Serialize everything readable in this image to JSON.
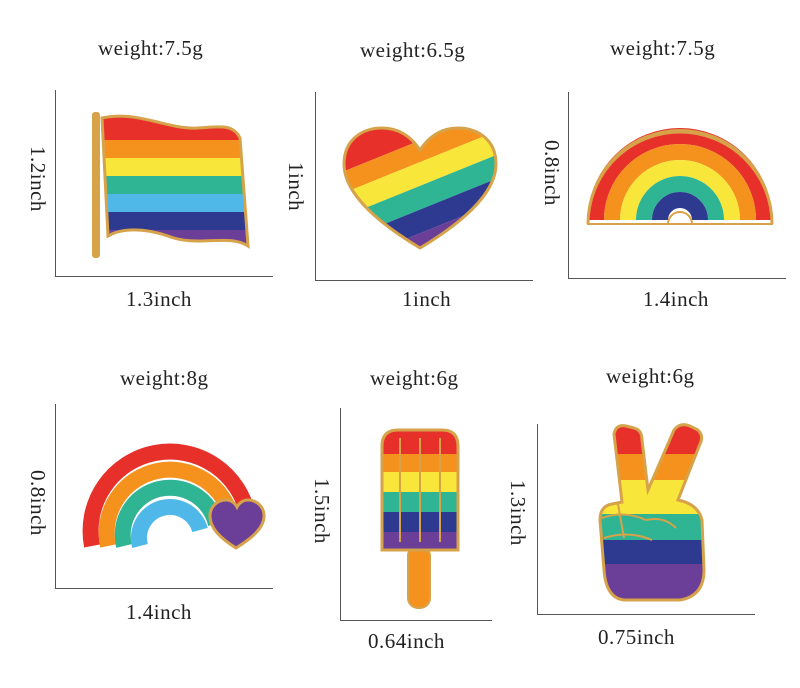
{
  "pins": [
    {
      "name": "rainbow-flag-pin",
      "weight": "weight:7.5g",
      "height_label": "1.2inch",
      "width_label": "1.3inch"
    },
    {
      "name": "rainbow-heart-pin",
      "weight": "weight:6.5g",
      "height_label": "1inch",
      "width_label": "1inch"
    },
    {
      "name": "rainbow-arch-pin",
      "weight": "weight:7.5g",
      "height_label": "0.8inch",
      "width_label": "1.4inch"
    },
    {
      "name": "rainbow-heart-arch-pin",
      "weight": "weight:8g",
      "height_label": "0.8inch",
      "width_label": "1.4inch"
    },
    {
      "name": "rainbow-popsicle-pin",
      "weight": "weight:6g",
      "height_label": "1.5inch",
      "width_label": "0.64inch"
    },
    {
      "name": "rainbow-peace-hand-pin",
      "weight": "weight:6g",
      "height_label": "1.3inch",
      "width_label": "0.75inch"
    }
  ],
  "colors": {
    "red": "#e8302a",
    "orange": "#f5921e",
    "yellow": "#f9e63a",
    "green": "#2fb594",
    "blue": "#4fb8e8",
    "navy": "#2d3a8f",
    "purple": "#6b3e98",
    "gold": "#d6a24a"
  }
}
